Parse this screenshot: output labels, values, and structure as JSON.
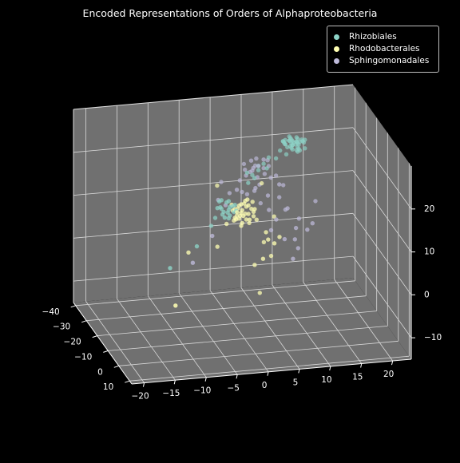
{
  "chart_data": {
    "type": "scatter",
    "projection": "3d",
    "title": "Encoded Representations of Orders of Alphaproteobacteria",
    "xlabel": "",
    "ylabel": "",
    "zlabel": "",
    "xlim": [
      -22,
      23
    ],
    "ylim": [
      -42,
      12
    ],
    "zlim": [
      -15,
      30
    ],
    "xticks": [
      -20,
      -15,
      -10,
      -5,
      0,
      5,
      10,
      15,
      20
    ],
    "yticks": [
      -40,
      -30,
      -20,
      -10,
      0,
      10
    ],
    "zticks": [
      -10,
      0,
      10,
      20
    ],
    "grid": true,
    "legend_position": "top-right",
    "background": "#000000",
    "pane_color": "#707070",
    "series": [
      {
        "name": "Rhizobiales",
        "color": "#8dd3c7",
        "points": [
          [
            10,
            -30,
            22
          ],
          [
            10,
            -32,
            22
          ],
          [
            11,
            -29,
            23
          ],
          [
            12,
            -31,
            22
          ],
          [
            12,
            -30,
            23
          ],
          [
            11,
            -31,
            21
          ],
          [
            12,
            -29,
            21
          ],
          [
            11,
            -30,
            22
          ],
          [
            12,
            -31,
            23
          ],
          [
            11,
            -32,
            22
          ],
          [
            13,
            -32,
            22
          ],
          [
            11,
            -32,
            23
          ],
          [
            10,
            -30,
            23
          ],
          [
            11,
            -32,
            22
          ],
          [
            12,
            -28,
            23
          ],
          [
            11,
            -29,
            22
          ],
          [
            12,
            -30,
            20
          ],
          [
            11,
            -29,
            21
          ],
          [
            10,
            -32,
            22
          ],
          [
            13,
            -29,
            23
          ],
          [
            9,
            -29,
            21
          ],
          [
            12,
            -31,
            22
          ],
          [
            11,
            -28,
            23
          ],
          [
            12,
            -30,
            21
          ],
          [
            10,
            -30,
            22
          ],
          [
            13,
            -29,
            21
          ],
          [
            12,
            -31,
            20
          ],
          [
            12,
            -30,
            22
          ],
          [
            11,
            -30,
            23
          ],
          [
            10,
            -28,
            22
          ],
          [
            11,
            -31,
            23
          ],
          [
            12,
            -29,
            22
          ],
          [
            10,
            -31,
            22
          ],
          [
            11,
            -30,
            21
          ],
          [
            12,
            -28,
            21
          ],
          [
            13,
            -30,
            22
          ],
          [
            12,
            -32,
            21
          ],
          [
            10,
            -29,
            20
          ],
          [
            13,
            -31,
            22
          ],
          [
            11,
            -29,
            22
          ],
          [
            -2,
            -20,
            12
          ],
          [
            -1,
            -18,
            13
          ],
          [
            -2,
            -19,
            11
          ],
          [
            -1,
            -21,
            13
          ],
          [
            -1,
            -19,
            12
          ],
          [
            0,
            -20,
            11
          ],
          [
            -2,
            -18,
            12
          ],
          [
            -1,
            -19,
            10
          ],
          [
            -2,
            -20,
            14
          ],
          [
            0,
            -18,
            12
          ],
          [
            -2,
            -21,
            12
          ],
          [
            -1,
            -20,
            11
          ],
          [
            -3,
            -18,
            13
          ],
          [
            -1,
            -19,
            14
          ],
          [
            0,
            -21,
            12
          ],
          [
            -2,
            -17,
            11
          ],
          [
            -3,
            -20,
            10
          ],
          [
            -1,
            -18,
            11
          ],
          [
            -2,
            -22,
            13
          ],
          [
            0,
            -19,
            13
          ],
          [
            3,
            -25,
            18
          ],
          [
            6,
            -27,
            19
          ],
          [
            5,
            -26,
            18
          ],
          [
            4,
            -24,
            17
          ],
          [
            7,
            -28,
            20
          ],
          [
            6,
            -24,
            19
          ],
          [
            4,
            -26,
            17
          ],
          [
            -12,
            -10,
            3
          ],
          [
            -7,
            -14,
            6
          ],
          [
            8,
            -27,
            20
          ],
          [
            5,
            -26,
            19
          ],
          [
            3,
            -24,
            16
          ],
          [
            -4,
            -18,
            9
          ]
        ]
      },
      {
        "name": "Rhodobacterales",
        "color": "#ffffb3",
        "points": [
          [
            1,
            -19,
            11
          ],
          [
            2,
            -20,
            12
          ],
          [
            0,
            -18,
            10
          ],
          [
            1,
            -21,
            12
          ],
          [
            2,
            -18,
            11
          ],
          [
            0,
            -20,
            9
          ],
          [
            1,
            -19,
            13
          ],
          [
            3,
            -19,
            11
          ],
          [
            2,
            -21,
            10
          ],
          [
            0,
            -19,
            12
          ],
          [
            1,
            -17,
            11
          ],
          [
            2,
            -20,
            9
          ],
          [
            1,
            -22,
            11
          ],
          [
            3,
            -18,
            12
          ],
          [
            0,
            -21,
            11
          ],
          [
            1,
            -18,
            9
          ],
          [
            2,
            -19,
            14
          ],
          [
            3,
            -21,
            11
          ],
          [
            1,
            -20,
            10
          ],
          [
            0,
            -17,
            12
          ],
          [
            2,
            -22,
            12
          ],
          [
            1,
            -19,
            8
          ],
          [
            3,
            -20,
            13
          ],
          [
            0,
            -19,
            10
          ],
          [
            2,
            -18,
            13
          ],
          [
            1,
            -21,
            9
          ],
          [
            2,
            -17,
            10
          ],
          [
            0,
            -22,
            12
          ],
          [
            3,
            -19,
            10
          ],
          [
            1,
            -18,
            12
          ],
          [
            5,
            -19,
            6
          ],
          [
            6,
            -17,
            4
          ],
          [
            5,
            -21,
            3
          ],
          [
            7,
            -18,
            5
          ],
          [
            4,
            -16,
            1
          ],
          [
            6,
            -20,
            0
          ],
          [
            5,
            -17,
            5
          ],
          [
            3,
            -18,
            -1
          ],
          [
            4,
            -22,
            8
          ],
          [
            3,
            -23,
            7
          ],
          [
            1,
            -23,
            9
          ],
          [
            -1,
            -21,
            8
          ],
          [
            5,
            -23,
            16
          ],
          [
            2,
            -21,
            13
          ],
          [
            4,
            -19,
            -8
          ],
          [
            -12,
            -5,
            -4
          ],
          [
            -8,
            -16,
            4
          ],
          [
            -3,
            -18,
            4
          ],
          [
            7,
            -23,
            8
          ],
          [
            -2,
            -24,
            16
          ]
        ]
      },
      {
        "name": "Sphingomonadales",
        "color": "#bebada",
        "points": [
          [
            3,
            -27,
            18
          ],
          [
            5,
            -26,
            19
          ],
          [
            4,
            -28,
            17
          ],
          [
            6,
            -27,
            18
          ],
          [
            5,
            -28,
            20
          ],
          [
            4,
            -26,
            18
          ],
          [
            3,
            -28,
            19
          ],
          [
            6,
            -26,
            17
          ],
          [
            5,
            -27,
            16
          ],
          [
            4,
            -27,
            20
          ],
          [
            7,
            -28,
            18
          ],
          [
            3,
            -26,
            17
          ],
          [
            5,
            -29,
            18
          ],
          [
            6,
            -27,
            20
          ],
          [
            4,
            -25,
            19
          ],
          [
            2,
            -26,
            16
          ],
          [
            7,
            -26,
            16
          ],
          [
            5,
            -25,
            15
          ],
          [
            4,
            -24,
            14
          ],
          [
            6,
            -23,
            13
          ],
          [
            8,
            -24,
            12
          ],
          [
            9,
            -22,
            10
          ],
          [
            7,
            -21,
            8
          ],
          [
            6,
            -20,
            6
          ],
          [
            8,
            -19,
            4
          ],
          [
            10,
            -18,
            2
          ],
          [
            10,
            -20,
            6
          ],
          [
            9,
            -24,
            9
          ],
          [
            12,
            -21,
            5
          ],
          [
            11,
            -23,
            7
          ],
          [
            9,
            -17,
            0
          ],
          [
            10,
            -21,
            3
          ],
          [
            0,
            -24,
            14
          ],
          [
            2,
            -24,
            14
          ],
          [
            1,
            -23,
            15
          ],
          [
            -1,
            -26,
            16
          ],
          [
            -2,
            -23,
            13
          ],
          [
            -1,
            -22,
            12
          ],
          [
            7,
            -29,
            19
          ],
          [
            8,
            -24,
            15
          ],
          [
            9,
            -26,
            14
          ],
          [
            4,
            -23,
            15
          ],
          [
            3,
            -25,
            13
          ],
          [
            5,
            -24,
            11
          ],
          [
            -8,
            -12,
            3
          ],
          [
            -4,
            -17,
            7
          ],
          [
            13,
            -22,
            6
          ],
          [
            14,
            -25,
            10
          ],
          [
            8,
            -27,
            16
          ],
          [
            6,
            -22,
            10
          ]
        ]
      }
    ]
  }
}
